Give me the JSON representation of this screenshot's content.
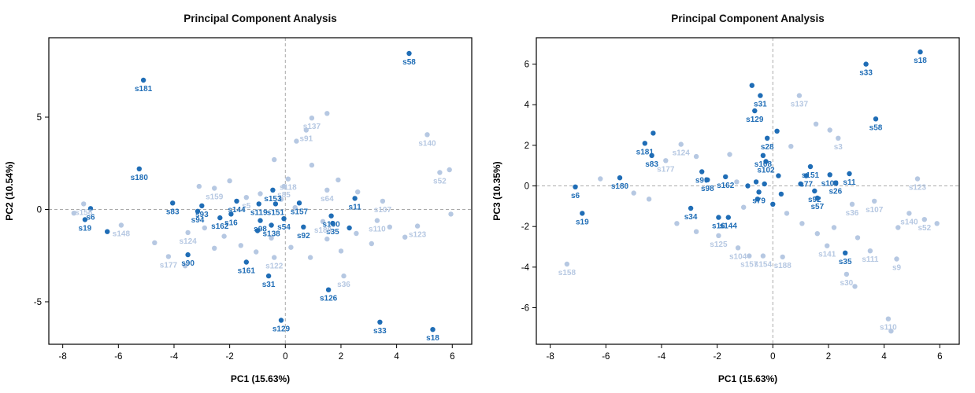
{
  "chart_data": [
    {
      "type": "scatter",
      "title": "Principal Component Analysis",
      "xlabel": "PC1 (15.63%)",
      "ylabel": "PC2 (10.54%)",
      "xlim": [
        -8.5,
        6.7
      ],
      "ylim": [
        -7.3,
        9.3
      ],
      "xticks": [
        -8,
        -6,
        -4,
        -2,
        0,
        2,
        4,
        6
      ],
      "yticks": [
        -5,
        0,
        5
      ],
      "grid": "dashed-zero-lines",
      "legend": "none",
      "colors": {
        "dark": "#1f6db6",
        "light": "#b6c8e2",
        "zero_line": "#aaaaaa",
        "box": "#000000"
      },
      "points": [
        [
          "s58",
          4.45,
          8.45,
          "d"
        ],
        [
          "s181",
          -5.1,
          7.0,
          "d"
        ],
        [
          "s137",
          0.95,
          4.95,
          "l"
        ],
        [
          "s91",
          0.75,
          4.3,
          "l"
        ],
        [
          "",
          1.5,
          5.2,
          "l"
        ],
        [
          "s140",
          5.1,
          4.05,
          "l"
        ],
        [
          "",
          0.4,
          3.7,
          "l"
        ],
        [
          "s180",
          -5.25,
          2.2,
          "d"
        ],
        [
          "s118",
          0.1,
          1.65,
          "l"
        ],
        [
          "s85",
          -0.05,
          1.25,
          "l"
        ],
        [
          "s159",
          -2.55,
          1.15,
          "l"
        ],
        [
          "s52",
          5.55,
          2.0,
          "l"
        ],
        [
          "",
          5.9,
          2.15,
          "l"
        ],
        [
          "",
          -0.4,
          2.7,
          "l"
        ],
        [
          "",
          0.95,
          2.4,
          "l"
        ],
        [
          "",
          1.9,
          1.6,
          "l"
        ],
        [
          "",
          -2.0,
          1.55,
          "l"
        ],
        [
          "",
          -3.1,
          1.25,
          "l"
        ],
        [
          "s153",
          -0.45,
          1.05,
          "d"
        ],
        [
          "s64",
          1.5,
          1.05,
          "l"
        ],
        [
          "s5",
          -1.4,
          0.65,
          "l"
        ],
        [
          "s83",
          -4.05,
          0.35,
          "d"
        ],
        [
          "s93",
          -3.0,
          0.2,
          "d"
        ],
        [
          "s94",
          -3.15,
          -0.1,
          "d"
        ],
        [
          "s144",
          -1.75,
          0.45,
          "d"
        ],
        [
          "s16",
          -1.95,
          -0.25,
          "d"
        ],
        [
          "s162",
          -2.35,
          -0.45,
          "d"
        ],
        [
          "s119",
          -0.95,
          0.3,
          "d"
        ],
        [
          "s151",
          -0.35,
          0.3,
          "d"
        ],
        [
          "s157",
          0.5,
          0.35,
          "d"
        ],
        [
          "s11",
          2.5,
          0.6,
          "d"
        ],
        [
          "s107",
          3.5,
          0.45,
          "l"
        ],
        [
          "s6",
          -7.0,
          0.05,
          "d"
        ],
        [
          "s158",
          -7.25,
          0.3,
          "l"
        ],
        [
          "s19",
          -7.2,
          -0.55,
          "d"
        ],
        [
          "s148",
          -5.9,
          -0.85,
          "l"
        ],
        [
          "s100",
          1.65,
          -0.35,
          "d"
        ],
        [
          "s35",
          1.7,
          -0.75,
          "d"
        ],
        [
          "s110",
          3.3,
          -0.6,
          "l"
        ],
        [
          "s123",
          4.75,
          -0.9,
          "l"
        ],
        [
          "s188",
          1.35,
          -0.65,
          "l"
        ],
        [
          "s54",
          -0.05,
          -0.5,
          "d"
        ],
        [
          "s138",
          -0.5,
          -0.85,
          "d"
        ],
        [
          "s98",
          -0.9,
          -0.6,
          "d"
        ],
        [
          "s92",
          0.65,
          -0.95,
          "d"
        ],
        [
          "s124",
          -3.5,
          -1.25,
          "l"
        ],
        [
          "s177",
          -4.2,
          -2.55,
          "l"
        ],
        [
          "s90",
          -3.5,
          -2.45,
          "d"
        ],
        [
          "s161",
          -1.4,
          -2.85,
          "d"
        ],
        [
          "s122",
          -0.4,
          -2.6,
          "l"
        ],
        [
          "s31",
          -0.6,
          -3.6,
          "d"
        ],
        [
          "s36",
          2.1,
          -3.6,
          "l"
        ],
        [
          "s126",
          1.55,
          -4.35,
          "d"
        ],
        [
          "s129",
          -0.15,
          -6.0,
          "d"
        ],
        [
          "s33",
          3.4,
          -6.1,
          "d"
        ],
        [
          "s18",
          5.3,
          -6.5,
          "d"
        ],
        [
          "",
          -7.6,
          -0.2,
          "l"
        ],
        [
          "",
          -6.4,
          -1.2,
          "d"
        ],
        [
          "",
          -4.7,
          -1.8,
          "l"
        ],
        [
          "",
          -3.6,
          -3.05,
          "l"
        ],
        [
          "",
          -2.9,
          -1.0,
          "l"
        ],
        [
          "",
          -2.55,
          -2.1,
          "l"
        ],
        [
          "",
          -2.2,
          -1.45,
          "l"
        ],
        [
          "",
          -1.6,
          -1.95,
          "l"
        ],
        [
          "",
          -1.05,
          -2.3,
          "l"
        ],
        [
          "",
          -0.5,
          -1.55,
          "l"
        ],
        [
          "",
          0.2,
          -2.05,
          "l"
        ],
        [
          "",
          0.9,
          -2.6,
          "l"
        ],
        [
          "",
          1.5,
          -1.6,
          "l"
        ],
        [
          "",
          2.0,
          -2.25,
          "l"
        ],
        [
          "",
          2.55,
          -1.3,
          "l"
        ],
        [
          "",
          3.1,
          -1.85,
          "l"
        ],
        [
          "",
          3.75,
          -0.95,
          "l"
        ],
        [
          "",
          4.3,
          -1.5,
          "l"
        ],
        [
          "",
          5.95,
          -0.25,
          "l"
        ],
        [
          "",
          -0.9,
          0.85,
          "l"
        ],
        [
          "",
          -0.15,
          0.55,
          "l"
        ],
        [
          "",
          0.35,
          0.1,
          "l"
        ],
        [
          "",
          2.3,
          -1.0,
          "d"
        ],
        [
          "",
          -1.0,
          -1.15,
          "d"
        ],
        [
          "",
          2.6,
          0.95,
          "l"
        ]
      ]
    },
    {
      "type": "scatter",
      "title": "Principal Component Analysis",
      "xlabel": "PC1 (15.63%)",
      "ylabel": "PC3 (10.35%)",
      "xlim": [
        -8.5,
        6.7
      ],
      "ylim": [
        -7.8,
        7.3
      ],
      "xticks": [
        -8,
        -6,
        -4,
        -2,
        0,
        2,
        4,
        6
      ],
      "yticks": [
        -6,
        -4,
        -2,
        0,
        2,
        4,
        6
      ],
      "grid": "dashed-zero-lines",
      "legend": "none",
      "colors": {
        "dark": "#1f6db6",
        "light": "#b6c8e2",
        "zero_line": "#aaaaaa",
        "box": "#000000"
      },
      "points": [
        [
          "s18",
          5.3,
          6.6,
          "d"
        ],
        [
          "s33",
          3.35,
          6.0,
          "d"
        ],
        [
          "",
          -0.75,
          4.95,
          "d"
        ],
        [
          "s31",
          -0.45,
          4.45,
          "d"
        ],
        [
          "s137",
          0.95,
          4.45,
          "l"
        ],
        [
          "s129",
          -0.65,
          3.7,
          "d"
        ],
        [
          "s58",
          3.7,
          3.3,
          "d"
        ],
        [
          "s3",
          2.35,
          2.35,
          "l"
        ],
        [
          "s28",
          -0.2,
          2.35,
          "d"
        ],
        [
          "",
          0.15,
          2.7,
          "d"
        ],
        [
          "s181",
          -4.6,
          2.1,
          "d"
        ],
        [
          "s124",
          -3.3,
          2.05,
          "l"
        ],
        [
          "",
          -4.3,
          2.6,
          "d"
        ],
        [
          "s83",
          -4.35,
          1.5,
          "d"
        ],
        [
          "s177",
          -3.85,
          1.25,
          "l"
        ],
        [
          "s108",
          -0.35,
          1.5,
          "d"
        ],
        [
          "s102",
          -0.25,
          1.2,
          "d"
        ],
        [
          "",
          0.65,
          1.95,
          "l"
        ],
        [
          "",
          1.55,
          3.05,
          "l"
        ],
        [
          "",
          2.05,
          2.75,
          "l"
        ],
        [
          "",
          -1.55,
          1.55,
          "l"
        ],
        [
          "",
          -2.75,
          1.45,
          "l"
        ],
        [
          "s90",
          -2.55,
          0.7,
          "d"
        ],
        [
          "s98",
          -2.35,
          0.3,
          "d"
        ],
        [
          "s180",
          -5.5,
          0.4,
          "d"
        ],
        [
          "s162",
          -1.7,
          0.45,
          "d"
        ],
        [
          "s151",
          1.35,
          0.95,
          "d"
        ],
        [
          "s77",
          1.2,
          0.5,
          "d"
        ],
        [
          "s100",
          2.05,
          0.55,
          "d"
        ],
        [
          "s11",
          2.75,
          0.6,
          "d"
        ],
        [
          "s26",
          2.25,
          0.15,
          "d"
        ],
        [
          "s92",
          1.5,
          -0.25,
          "d"
        ],
        [
          "s57",
          1.6,
          -0.6,
          "d"
        ],
        [
          "s36",
          2.85,
          -0.9,
          "l"
        ],
        [
          "s123",
          5.2,
          0.35,
          "l"
        ],
        [
          "s6",
          -7.1,
          -0.05,
          "d"
        ],
        [
          "s19",
          -6.85,
          -1.35,
          "d"
        ],
        [
          "s34",
          -2.95,
          -1.1,
          "d"
        ],
        [
          "s16",
          -1.95,
          -1.55,
          "d"
        ],
        [
          "s144",
          -1.6,
          -1.55,
          "d"
        ],
        [
          "s79",
          -0.5,
          -0.3,
          "d"
        ],
        [
          "s125",
          -1.95,
          -2.45,
          "l"
        ],
        [
          "s104",
          -1.25,
          -3.05,
          "l"
        ],
        [
          "s107",
          3.65,
          -0.75,
          "l"
        ],
        [
          "s140",
          4.9,
          -1.35,
          "l"
        ],
        [
          "s52",
          5.45,
          -1.65,
          "l"
        ],
        [
          "s141",
          1.95,
          -2.95,
          "l"
        ],
        [
          "s111",
          3.5,
          -3.2,
          "l"
        ],
        [
          "s9",
          4.45,
          -3.6,
          "l"
        ],
        [
          "s35",
          2.6,
          -3.3,
          "d"
        ],
        [
          "s30",
          2.65,
          -4.35,
          "l"
        ],
        [
          "s188",
          0.35,
          -3.5,
          "l"
        ],
        [
          "s154",
          -0.35,
          -3.45,
          "l"
        ],
        [
          "s157",
          -0.85,
          -3.45,
          "l"
        ],
        [
          "s158",
          -7.4,
          -3.85,
          "l"
        ],
        [
          "s110",
          4.15,
          -6.55,
          "l"
        ],
        [
          "",
          4.25,
          -7.15,
          "l"
        ],
        [
          "",
          -6.2,
          0.35,
          "l"
        ],
        [
          "",
          -5.0,
          -0.35,
          "l"
        ],
        [
          "",
          -4.45,
          -0.65,
          "l"
        ],
        [
          "",
          -3.45,
          -1.85,
          "l"
        ],
        [
          "",
          -2.75,
          -2.25,
          "l"
        ],
        [
          "",
          -1.05,
          -1.05,
          "l"
        ],
        [
          "",
          0.5,
          -1.35,
          "l"
        ],
        [
          "",
          1.05,
          -1.85,
          "l"
        ],
        [
          "",
          1.6,
          -2.35,
          "l"
        ],
        [
          "",
          2.2,
          -2.05,
          "l"
        ],
        [
          "",
          3.05,
          -2.55,
          "l"
        ],
        [
          "",
          4.5,
          -2.05,
          "l"
        ],
        [
          "",
          5.9,
          -1.85,
          "l"
        ],
        [
          "",
          2.95,
          -4.95,
          "l"
        ],
        [
          "",
          0.0,
          -0.9,
          "d"
        ],
        [
          "",
          -0.55,
          -0.65,
          "d"
        ],
        [
          "",
          -0.3,
          0.1,
          "d"
        ],
        [
          "",
          -0.6,
          0.2,
          "d"
        ],
        [
          "",
          0.2,
          0.5,
          "d"
        ],
        [
          "",
          -0.9,
          0.0,
          "d"
        ],
        [
          "",
          1.0,
          0.1,
          "d"
        ],
        [
          "",
          -1.3,
          0.2,
          "l"
        ],
        [
          "",
          0.3,
          -0.4,
          "d"
        ]
      ]
    }
  ]
}
